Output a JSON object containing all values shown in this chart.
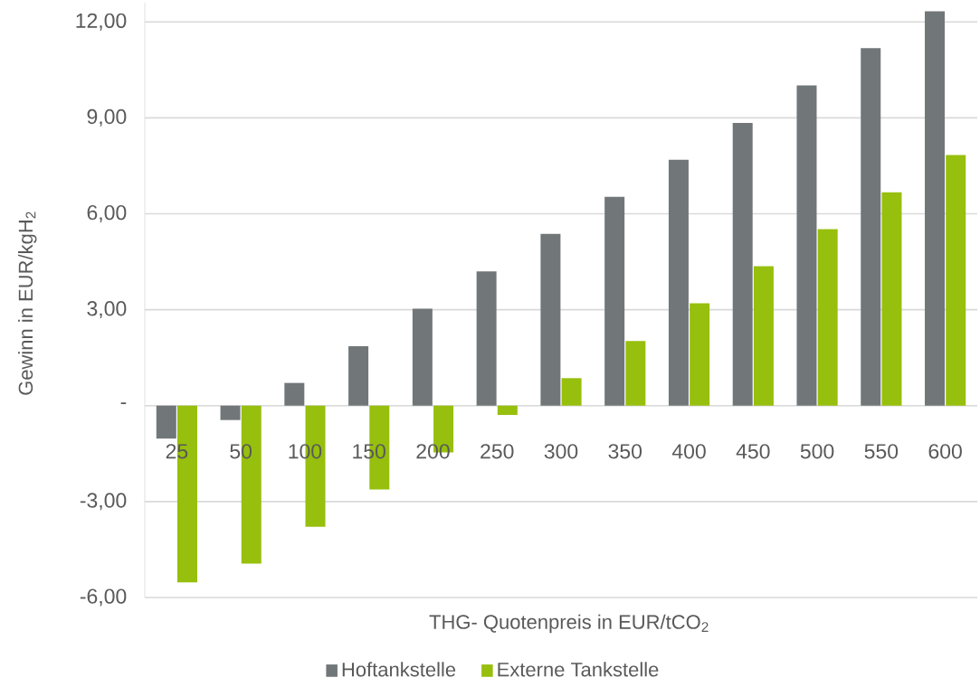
{
  "chart_data": {
    "type": "bar",
    "xlabel": "THG- Quotenpreis in EUR/tCO$_{2}$",
    "ylabel": "Gewinn in EUR/kgH$_{2}$",
    "categories": [
      "25",
      "50",
      "100",
      "150",
      "200",
      "250",
      "300",
      "350",
      "400",
      "450",
      "500",
      "550",
      "600"
    ],
    "series": [
      {
        "name": "Hoftankstelle",
        "color": "#717679",
        "values": [
          -1.03,
          -0.45,
          0.71,
          1.86,
          3.03,
          4.2,
          5.37,
          6.53,
          7.69,
          8.84,
          10.01,
          11.18,
          12.33
        ]
      },
      {
        "name": "Externe Tankstelle",
        "color": "#97bf0d",
        "values": [
          -5.53,
          -4.94,
          -3.79,
          -2.62,
          -1.46,
          -0.29,
          0.86,
          2.02,
          3.2,
          4.36,
          5.52,
          6.67,
          7.84
        ]
      }
    ],
    "ylim": [
      -6,
      12.6
    ],
    "yticks": [
      {
        "value": -6,
        "label": "-6,00"
      },
      {
        "value": -3,
        "label": "-3,00"
      },
      {
        "value": 0,
        "label": "-"
      },
      {
        "value": 3,
        "label": "3,00"
      },
      {
        "value": 6,
        "label": "6,00"
      },
      {
        "value": 9,
        "label": "9,00"
      },
      {
        "value": 12,
        "label": "12,00"
      }
    ],
    "grid": "y",
    "legend": "bottom"
  }
}
